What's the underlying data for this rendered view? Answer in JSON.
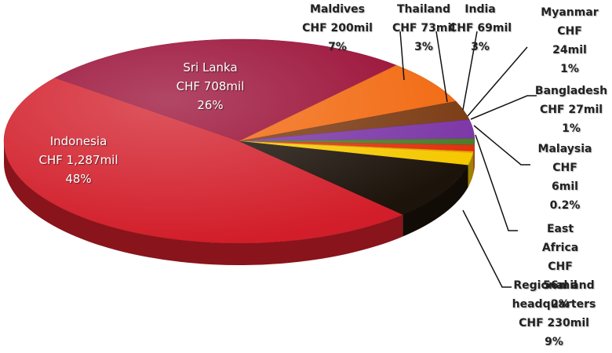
{
  "chart_data": {
    "type": "pie",
    "categories": [
      "Indonesia",
      "Sri Lanka",
      "Maldives",
      "Thailand",
      "India",
      "Myanmar",
      "Bangladesh",
      "Malaysia",
      "East Africa",
      "Regional and headquarters"
    ],
    "values": [
      48,
      26,
      7,
      3,
      3,
      1,
      1,
      0.2,
      2,
      9
    ],
    "value_labels": [
      "48%",
      "26%",
      "7%",
      "3%",
      "3%",
      "1%",
      "1%",
      "0.2%",
      "2%",
      "9%"
    ],
    "amounts": [
      1287,
      708,
      200,
      73,
      69,
      24,
      27,
      6,
      56,
      230
    ],
    "amount_labels": [
      "CHF 1,287mil",
      "CHF 708mil",
      "CHF 200mil",
      "CHF 73mil",
      "CHF 69mil",
      "CHF 24mil",
      "CHF 27mil",
      "CHF 6mil",
      "CHF 56mil",
      "CHF 230mil"
    ],
    "colors": [
      "#d21e2a",
      "#980a32",
      "#f2680e",
      "#7a3a12",
      "#7b36a6",
      "#4d7a2a",
      "#e2300e",
      "#f6a400",
      "#f5c800",
      "#1c130b"
    ]
  }
}
